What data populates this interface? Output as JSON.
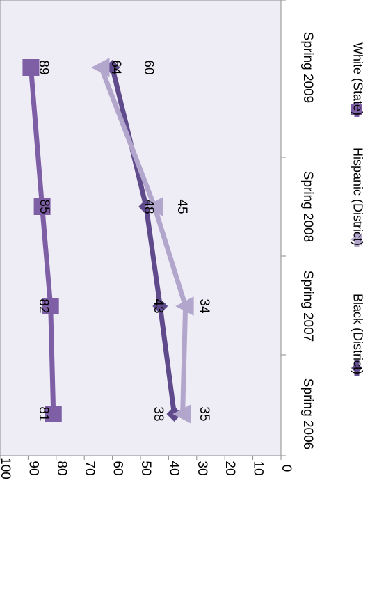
{
  "chart_data": {
    "type": "line",
    "orientation": "rotated-90-clockwise",
    "categories": [
      "Spring 2006",
      "Spring 2007",
      "Spring 2008",
      "Spring 2009"
    ],
    "ylim": [
      0,
      100
    ],
    "yticks": [
      0,
      10,
      20,
      30,
      40,
      50,
      60,
      70,
      80,
      90,
      100
    ],
    "grid": false,
    "legend_position": "bottom",
    "series": [
      {
        "name": "Black (District)",
        "values": [
          38,
          43,
          48,
          60
        ],
        "color": "#5f4b8b",
        "marker": "diamond"
      },
      {
        "name": "Hispanic (District)",
        "values": [
          35,
          34,
          45,
          64
        ],
        "color": "#b3a6cc",
        "marker": "triangle"
      },
      {
        "name": "White (State)",
        "values": [
          81,
          82,
          85,
          89
        ],
        "color": "#7e5fa6",
        "marker": "square"
      }
    ],
    "plot_background": "#eeecf4"
  }
}
